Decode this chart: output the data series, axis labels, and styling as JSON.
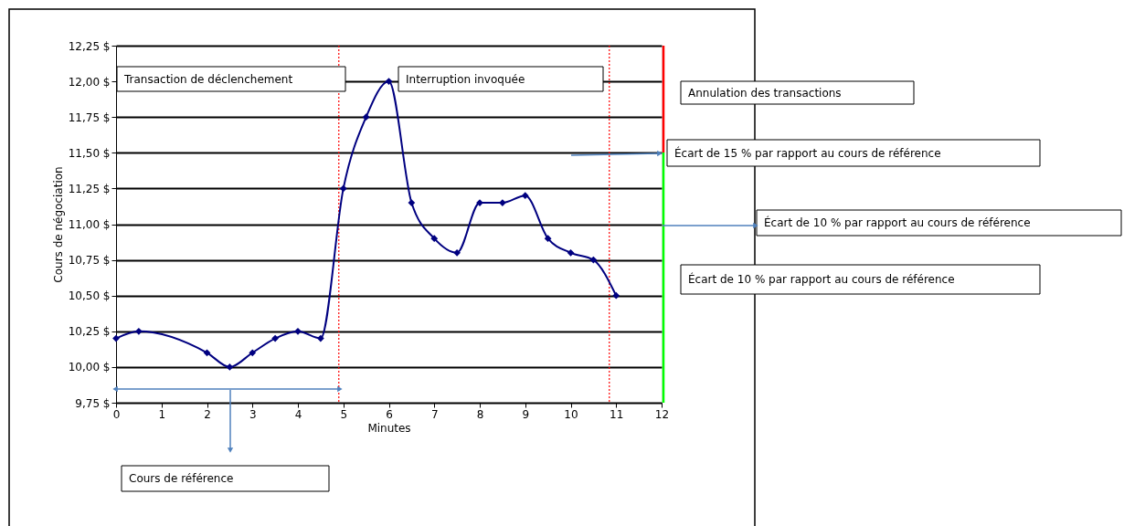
{
  "chart_data": {
    "type": "line",
    "xlabel": "Minutes",
    "ylabel": "Cours de négociation",
    "x": [
      0,
      0.5,
      2,
      2.5,
      3,
      3.5,
      4,
      4.5,
      5,
      5.5,
      6,
      6.5,
      7,
      7.5,
      8,
      8.5,
      9,
      9.5,
      10,
      10.5,
      11
    ],
    "series": [
      {
        "color": "#000080",
        "values": [
          10.2,
          10.25,
          10.1,
          10.0,
          10.1,
          10.2,
          10.25,
          10.2,
          11.25,
          11.75,
          12.0,
          11.15,
          10.9,
          10.8,
          11.15,
          11.15,
          11.2,
          10.9,
          10.8,
          10.75,
          10.5
        ]
      }
    ],
    "xlim": [
      0,
      12
    ],
    "xticks": [
      0,
      1,
      2,
      3,
      4,
      5,
      6,
      7,
      8,
      9,
      10,
      11,
      12
    ],
    "ylim": [
      9.75,
      12.25
    ],
    "yticks": [
      {
        "value": 9.75,
        "label": "9,75 $"
      },
      {
        "value": 10.0,
        "label": "10,00 $"
      },
      {
        "value": 10.25,
        "label": "10,25 $"
      },
      {
        "value": 10.5,
        "label": "10,50 $"
      },
      {
        "value": 10.75,
        "label": "10,75 $"
      },
      {
        "value": 11.0,
        "label": "11,00 $"
      },
      {
        "value": 11.25,
        "label": "11,25 $"
      },
      {
        "value": 11.5,
        "label": "11,50 $"
      },
      {
        "value": 11.75,
        "label": "11,75 $"
      },
      {
        "value": 12.0,
        "label": "12,00 $"
      },
      {
        "value": 12.25,
        "label": "12,25 $"
      }
    ],
    "ref_lines": [
      {
        "axis": "x",
        "value": 4.9,
        "color": "#ff0000",
        "line_style": "dotted"
      },
      {
        "axis": "x",
        "value": 10.85,
        "color": "#ff0000",
        "line_style": "dotted"
      }
    ],
    "annotations": [
      "Transaction de déclenchement",
      "Interruption invoquée",
      "Annulation des transactions",
      "Écart de 15 % par rapport au cours de référence",
      "Écart de 10 % par rapport au cours de référence",
      "Écart de 10 % par rapport au cours de référence",
      "Cours de référence"
    ],
    "grid": "y",
    "marker": "diamond",
    "line_style": "solid"
  }
}
